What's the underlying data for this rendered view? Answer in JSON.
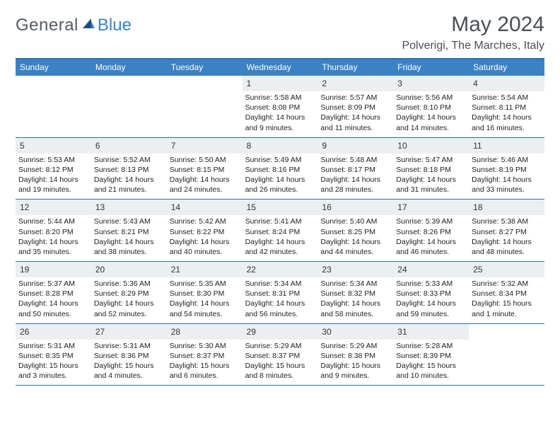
{
  "logo": {
    "text_left": "General",
    "text_right": "Blue",
    "color_general": "#555b61",
    "color_blue": "#3b82c4"
  },
  "header": {
    "month": "May 2024",
    "location": "Polverigi, The Marches, Italy"
  },
  "colors": {
    "header_bg": "#3b82c4",
    "header_text": "#ffffff",
    "rule": "#2f6faf",
    "daynum_bg": "#eceff1",
    "text": "#222222",
    "title": "#4a4f55"
  },
  "weekdays": [
    "Sunday",
    "Monday",
    "Tuesday",
    "Wednesday",
    "Thursday",
    "Friday",
    "Saturday"
  ],
  "weeks": [
    [
      {
        "day": "",
        "l1": "",
        "l2": "",
        "l3": "",
        "l4": ""
      },
      {
        "day": "",
        "l1": "",
        "l2": "",
        "l3": "",
        "l4": ""
      },
      {
        "day": "",
        "l1": "",
        "l2": "",
        "l3": "",
        "l4": ""
      },
      {
        "day": "1",
        "l1": "Sunrise: 5:58 AM",
        "l2": "Sunset: 8:08 PM",
        "l3": "Daylight: 14 hours",
        "l4": "and 9 minutes."
      },
      {
        "day": "2",
        "l1": "Sunrise: 5:57 AM",
        "l2": "Sunset: 8:09 PM",
        "l3": "Daylight: 14 hours",
        "l4": "and 11 minutes."
      },
      {
        "day": "3",
        "l1": "Sunrise: 5:56 AM",
        "l2": "Sunset: 8:10 PM",
        "l3": "Daylight: 14 hours",
        "l4": "and 14 minutes."
      },
      {
        "day": "4",
        "l1": "Sunrise: 5:54 AM",
        "l2": "Sunset: 8:11 PM",
        "l3": "Daylight: 14 hours",
        "l4": "and 16 minutes."
      }
    ],
    [
      {
        "day": "5",
        "l1": "Sunrise: 5:53 AM",
        "l2": "Sunset: 8:12 PM",
        "l3": "Daylight: 14 hours",
        "l4": "and 19 minutes."
      },
      {
        "day": "6",
        "l1": "Sunrise: 5:52 AM",
        "l2": "Sunset: 8:13 PM",
        "l3": "Daylight: 14 hours",
        "l4": "and 21 minutes."
      },
      {
        "day": "7",
        "l1": "Sunrise: 5:50 AM",
        "l2": "Sunset: 8:15 PM",
        "l3": "Daylight: 14 hours",
        "l4": "and 24 minutes."
      },
      {
        "day": "8",
        "l1": "Sunrise: 5:49 AM",
        "l2": "Sunset: 8:16 PM",
        "l3": "Daylight: 14 hours",
        "l4": "and 26 minutes."
      },
      {
        "day": "9",
        "l1": "Sunrise: 5:48 AM",
        "l2": "Sunset: 8:17 PM",
        "l3": "Daylight: 14 hours",
        "l4": "and 28 minutes."
      },
      {
        "day": "10",
        "l1": "Sunrise: 5:47 AM",
        "l2": "Sunset: 8:18 PM",
        "l3": "Daylight: 14 hours",
        "l4": "and 31 minutes."
      },
      {
        "day": "11",
        "l1": "Sunrise: 5:46 AM",
        "l2": "Sunset: 8:19 PM",
        "l3": "Daylight: 14 hours",
        "l4": "and 33 minutes."
      }
    ],
    [
      {
        "day": "12",
        "l1": "Sunrise: 5:44 AM",
        "l2": "Sunset: 8:20 PM",
        "l3": "Daylight: 14 hours",
        "l4": "and 35 minutes."
      },
      {
        "day": "13",
        "l1": "Sunrise: 5:43 AM",
        "l2": "Sunset: 8:21 PM",
        "l3": "Daylight: 14 hours",
        "l4": "and 38 minutes."
      },
      {
        "day": "14",
        "l1": "Sunrise: 5:42 AM",
        "l2": "Sunset: 8:22 PM",
        "l3": "Daylight: 14 hours",
        "l4": "and 40 minutes."
      },
      {
        "day": "15",
        "l1": "Sunrise: 5:41 AM",
        "l2": "Sunset: 8:24 PM",
        "l3": "Daylight: 14 hours",
        "l4": "and 42 minutes."
      },
      {
        "day": "16",
        "l1": "Sunrise: 5:40 AM",
        "l2": "Sunset: 8:25 PM",
        "l3": "Daylight: 14 hours",
        "l4": "and 44 minutes."
      },
      {
        "day": "17",
        "l1": "Sunrise: 5:39 AM",
        "l2": "Sunset: 8:26 PM",
        "l3": "Daylight: 14 hours",
        "l4": "and 46 minutes."
      },
      {
        "day": "18",
        "l1": "Sunrise: 5:38 AM",
        "l2": "Sunset: 8:27 PM",
        "l3": "Daylight: 14 hours",
        "l4": "and 48 minutes."
      }
    ],
    [
      {
        "day": "19",
        "l1": "Sunrise: 5:37 AM",
        "l2": "Sunset: 8:28 PM",
        "l3": "Daylight: 14 hours",
        "l4": "and 50 minutes."
      },
      {
        "day": "20",
        "l1": "Sunrise: 5:36 AM",
        "l2": "Sunset: 8:29 PM",
        "l3": "Daylight: 14 hours",
        "l4": "and 52 minutes."
      },
      {
        "day": "21",
        "l1": "Sunrise: 5:35 AM",
        "l2": "Sunset: 8:30 PM",
        "l3": "Daylight: 14 hours",
        "l4": "and 54 minutes."
      },
      {
        "day": "22",
        "l1": "Sunrise: 5:34 AM",
        "l2": "Sunset: 8:31 PM",
        "l3": "Daylight: 14 hours",
        "l4": "and 56 minutes."
      },
      {
        "day": "23",
        "l1": "Sunrise: 5:34 AM",
        "l2": "Sunset: 8:32 PM",
        "l3": "Daylight: 14 hours",
        "l4": "and 58 minutes."
      },
      {
        "day": "24",
        "l1": "Sunrise: 5:33 AM",
        "l2": "Sunset: 8:33 PM",
        "l3": "Daylight: 14 hours",
        "l4": "and 59 minutes."
      },
      {
        "day": "25",
        "l1": "Sunrise: 5:32 AM",
        "l2": "Sunset: 8:34 PM",
        "l3": "Daylight: 15 hours",
        "l4": "and 1 minute."
      }
    ],
    [
      {
        "day": "26",
        "l1": "Sunrise: 5:31 AM",
        "l2": "Sunset: 8:35 PM",
        "l3": "Daylight: 15 hours",
        "l4": "and 3 minutes."
      },
      {
        "day": "27",
        "l1": "Sunrise: 5:31 AM",
        "l2": "Sunset: 8:36 PM",
        "l3": "Daylight: 15 hours",
        "l4": "and 4 minutes."
      },
      {
        "day": "28",
        "l1": "Sunrise: 5:30 AM",
        "l2": "Sunset: 8:37 PM",
        "l3": "Daylight: 15 hours",
        "l4": "and 6 minutes."
      },
      {
        "day": "29",
        "l1": "Sunrise: 5:29 AM",
        "l2": "Sunset: 8:37 PM",
        "l3": "Daylight: 15 hours",
        "l4": "and 8 minutes."
      },
      {
        "day": "30",
        "l1": "Sunrise: 5:29 AM",
        "l2": "Sunset: 8:38 PM",
        "l3": "Daylight: 15 hours",
        "l4": "and 9 minutes."
      },
      {
        "day": "31",
        "l1": "Sunrise: 5:28 AM",
        "l2": "Sunset: 8:39 PM",
        "l3": "Daylight: 15 hours",
        "l4": "and 10 minutes."
      },
      {
        "day": "",
        "l1": "",
        "l2": "",
        "l3": "",
        "l4": ""
      }
    ]
  ]
}
